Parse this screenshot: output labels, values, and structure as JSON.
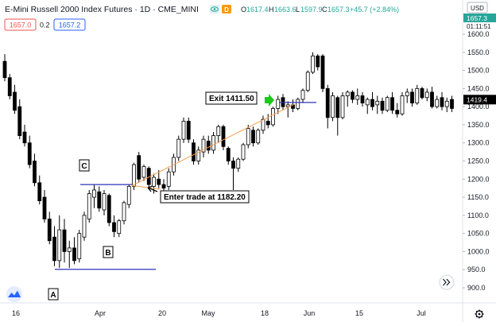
{
  "header": {
    "title": "E-Mini Russell 2000 Index Futures · 1D · CME_MINI",
    "open_label": "O",
    "open": "1617.4",
    "high_label": "H",
    "high": "1663.6",
    "low_label": "L",
    "low": "1597.9",
    "close_label": "C",
    "close": "1657.3",
    "change": "+45.7 (+2.84%)",
    "bid_price": "1657.0",
    "spread": "0.2",
    "ask_price": "1657.2"
  },
  "price_axis": {
    "currency": "USD",
    "last_price": "1657.3",
    "countdown": "01:11:51",
    "crosshair_price": "1419.4",
    "ticks": [
      "1600.0",
      "1550.0",
      "1500.0",
      "1450.0",
      "1400.0",
      "1350.0",
      "1300.0",
      "1250.0",
      "1200.0",
      "1150.0",
      "1100.0",
      "1050.0",
      "1000.0",
      "950.0",
      "900.0"
    ]
  },
  "time_axis": {
    "ticks": [
      "16",
      "Apr",
      "20",
      "May",
      "18",
      "Jun",
      "15",
      "Jul"
    ]
  },
  "annotations": {
    "label_a": "A",
    "label_b": "B",
    "label_c": "C",
    "entry_text": "Enter trade at 1182.20",
    "exit_text": "Exit 1411.50"
  },
  "colors": {
    "up": "#ffffff",
    "down": "#000000",
    "wick": "#000000",
    "level_line": "#2c35b5",
    "trend_line": "#f5a04a",
    "arrow": "#1ec81e",
    "change_positive": "#26a69a",
    "bid": "#ef5350",
    "ask": "#2962ff"
  },
  "icons": {
    "eye": "eye-icon",
    "d_badge": "data-badge-icon",
    "settings": "gear-icon",
    "scroll": "chevron-right-double-icon",
    "logo": "tradingview-logo-icon",
    "entry_arrow": "down-left-arrow-icon",
    "exit_arrow": "right-arrow-icon"
  },
  "chart_data": {
    "type": "candlestick",
    "y_range": [
      867,
      1649
    ],
    "levels": {
      "A": 951,
      "B_high": 1185,
      "entry": 1182.2,
      "exit": 1411.5
    },
    "candles": [
      {
        "o": 1525,
        "h": 1545,
        "l": 1470,
        "c": 1480
      },
      {
        "o": 1480,
        "h": 1490,
        "l": 1420,
        "c": 1430
      },
      {
        "o": 1440,
        "h": 1460,
        "l": 1380,
        "c": 1390
      },
      {
        "o": 1400,
        "h": 1420,
        "l": 1310,
        "c": 1320
      },
      {
        "o": 1330,
        "h": 1350,
        "l": 1290,
        "c": 1300
      },
      {
        "o": 1300,
        "h": 1320,
        "l": 1230,
        "c": 1240
      },
      {
        "o": 1250,
        "h": 1270,
        "l": 1180,
        "c": 1190
      },
      {
        "o": 1190,
        "h": 1210,
        "l": 1130,
        "c": 1140
      },
      {
        "o": 1150,
        "h": 1170,
        "l": 1080,
        "c": 1090
      },
      {
        "o": 1090,
        "h": 1110,
        "l": 1020,
        "c": 1030
      },
      {
        "o": 1040,
        "h": 1070,
        "l": 960,
        "c": 975
      },
      {
        "o": 975,
        "h": 1100,
        "l": 955,
        "c": 1060
      },
      {
        "o": 1060,
        "h": 1090,
        "l": 970,
        "c": 1000
      },
      {
        "o": 1000,
        "h": 1030,
        "l": 955,
        "c": 1010
      },
      {
        "o": 1010,
        "h": 1040,
        "l": 965,
        "c": 975
      },
      {
        "o": 980,
        "h": 1060,
        "l": 970,
        "c": 1050
      },
      {
        "o": 1040,
        "h": 1110,
        "l": 1030,
        "c": 1100
      },
      {
        "o": 1090,
        "h": 1170,
        "l": 1080,
        "c": 1160
      },
      {
        "o": 1150,
        "h": 1185,
        "l": 1120,
        "c": 1170
      },
      {
        "o": 1165,
        "h": 1180,
        "l": 1110,
        "c": 1120
      },
      {
        "o": 1115,
        "h": 1170,
        "l": 1100,
        "c": 1160
      },
      {
        "o": 1155,
        "h": 1160,
        "l": 1070,
        "c": 1080
      },
      {
        "o": 1080,
        "h": 1100,
        "l": 1040,
        "c": 1055
      },
      {
        "o": 1050,
        "h": 1090,
        "l": 1040,
        "c": 1085
      },
      {
        "o": 1085,
        "h": 1140,
        "l": 1075,
        "c": 1135
      },
      {
        "o": 1130,
        "h": 1185,
        "l": 1120,
        "c": 1180
      },
      {
        "o": 1180,
        "h": 1245,
        "l": 1170,
        "c": 1240
      },
      {
        "o": 1265,
        "h": 1275,
        "l": 1190,
        "c": 1200
      },
      {
        "o": 1205,
        "h": 1240,
        "l": 1195,
        "c": 1235
      },
      {
        "o": 1230,
        "h": 1235,
        "l": 1175,
        "c": 1185
      },
      {
        "o": 1180,
        "h": 1215,
        "l": 1160,
        "c": 1205
      },
      {
        "o": 1200,
        "h": 1225,
        "l": 1175,
        "c": 1185
      },
      {
        "o": 1185,
        "h": 1200,
        "l": 1160,
        "c": 1175
      },
      {
        "o": 1180,
        "h": 1230,
        "l": 1170,
        "c": 1220
      },
      {
        "o": 1220,
        "h": 1270,
        "l": 1210,
        "c": 1260
      },
      {
        "o": 1260,
        "h": 1320,
        "l": 1250,
        "c": 1310
      },
      {
        "o": 1310,
        "h": 1370,
        "l": 1300,
        "c": 1360
      },
      {
        "o": 1360,
        "h": 1370,
        "l": 1300,
        "c": 1310
      },
      {
        "o": 1300,
        "h": 1310,
        "l": 1240,
        "c": 1250
      },
      {
        "o": 1250,
        "h": 1290,
        "l": 1240,
        "c": 1280
      },
      {
        "o": 1275,
        "h": 1320,
        "l": 1260,
        "c": 1310
      },
      {
        "o": 1305,
        "h": 1320,
        "l": 1270,
        "c": 1280
      },
      {
        "o": 1280,
        "h": 1330,
        "l": 1270,
        "c": 1320
      },
      {
        "o": 1320,
        "h": 1350,
        "l": 1300,
        "c": 1345
      },
      {
        "o": 1345,
        "h": 1350,
        "l": 1280,
        "c": 1290
      },
      {
        "o": 1285,
        "h": 1290,
        "l": 1240,
        "c": 1250
      },
      {
        "o": 1250,
        "h": 1260,
        "l": 1170,
        "c": 1230
      },
      {
        "o": 1230,
        "h": 1260,
        "l": 1220,
        "c": 1255
      },
      {
        "o": 1255,
        "h": 1300,
        "l": 1250,
        "c": 1295
      },
      {
        "o": 1295,
        "h": 1350,
        "l": 1285,
        "c": 1340
      },
      {
        "o": 1335,
        "h": 1345,
        "l": 1290,
        "c": 1300
      },
      {
        "o": 1300,
        "h": 1340,
        "l": 1295,
        "c": 1335
      },
      {
        "o": 1335,
        "h": 1375,
        "l": 1325,
        "c": 1365
      },
      {
        "o": 1360,
        "h": 1380,
        "l": 1340,
        "c": 1350
      },
      {
        "o": 1350,
        "h": 1400,
        "l": 1345,
        "c": 1395
      },
      {
        "o": 1395,
        "h": 1430,
        "l": 1380,
        "c": 1420
      },
      {
        "o": 1425,
        "h": 1435,
        "l": 1390,
        "c": 1400
      },
      {
        "o": 1400,
        "h": 1415,
        "l": 1370,
        "c": 1405
      },
      {
        "o": 1405,
        "h": 1420,
        "l": 1385,
        "c": 1395
      },
      {
        "o": 1395,
        "h": 1425,
        "l": 1390,
        "c": 1420
      },
      {
        "o": 1420,
        "h": 1450,
        "l": 1410,
        "c": 1445
      },
      {
        "o": 1445,
        "h": 1500,
        "l": 1440,
        "c": 1495
      },
      {
        "o": 1495,
        "h": 1550,
        "l": 1490,
        "c": 1540
      },
      {
        "o": 1540,
        "h": 1545,
        "l": 1500,
        "c": 1510
      },
      {
        "o": 1540,
        "h": 1545,
        "l": 1440,
        "c": 1450
      },
      {
        "o": 1450,
        "h": 1460,
        "l": 1340,
        "c": 1370
      },
      {
        "o": 1370,
        "h": 1440,
        "l": 1360,
        "c": 1430
      },
      {
        "o": 1425,
        "h": 1430,
        "l": 1320,
        "c": 1370
      },
      {
        "o": 1370,
        "h": 1440,
        "l": 1365,
        "c": 1430
      },
      {
        "o": 1430,
        "h": 1445,
        "l": 1400,
        "c": 1440
      },
      {
        "o": 1440,
        "h": 1445,
        "l": 1410,
        "c": 1420
      },
      {
        "o": 1420,
        "h": 1450,
        "l": 1405,
        "c": 1430
      },
      {
        "o": 1430,
        "h": 1440,
        "l": 1400,
        "c": 1410
      },
      {
        "o": 1405,
        "h": 1425,
        "l": 1380,
        "c": 1420
      },
      {
        "o": 1420,
        "h": 1440,
        "l": 1390,
        "c": 1400
      },
      {
        "o": 1405,
        "h": 1430,
        "l": 1380,
        "c": 1415
      },
      {
        "o": 1415,
        "h": 1425,
        "l": 1380,
        "c": 1390
      },
      {
        "o": 1390,
        "h": 1430,
        "l": 1385,
        "c": 1425
      },
      {
        "o": 1425,
        "h": 1440,
        "l": 1380,
        "c": 1390
      },
      {
        "o": 1390,
        "h": 1410,
        "l": 1370,
        "c": 1380
      },
      {
        "o": 1380,
        "h": 1440,
        "l": 1375,
        "c": 1430
      },
      {
        "o": 1430,
        "h": 1450,
        "l": 1410,
        "c": 1440
      },
      {
        "o": 1440,
        "h": 1450,
        "l": 1400,
        "c": 1410
      },
      {
        "o": 1410,
        "h": 1460,
        "l": 1405,
        "c": 1450
      },
      {
        "o": 1450,
        "h": 1455,
        "l": 1420,
        "c": 1425
      },
      {
        "o": 1425,
        "h": 1450,
        "l": 1415,
        "c": 1440
      },
      {
        "o": 1440,
        "h": 1455,
        "l": 1395,
        "c": 1400
      },
      {
        "o": 1400,
        "h": 1430,
        "l": 1395,
        "c": 1420
      },
      {
        "o": 1425,
        "h": 1440,
        "l": 1390,
        "c": 1400
      },
      {
        "o": 1400,
        "h": 1425,
        "l": 1385,
        "c": 1415
      },
      {
        "o": 1420,
        "h": 1430,
        "l": 1385,
        "c": 1395
      }
    ]
  }
}
